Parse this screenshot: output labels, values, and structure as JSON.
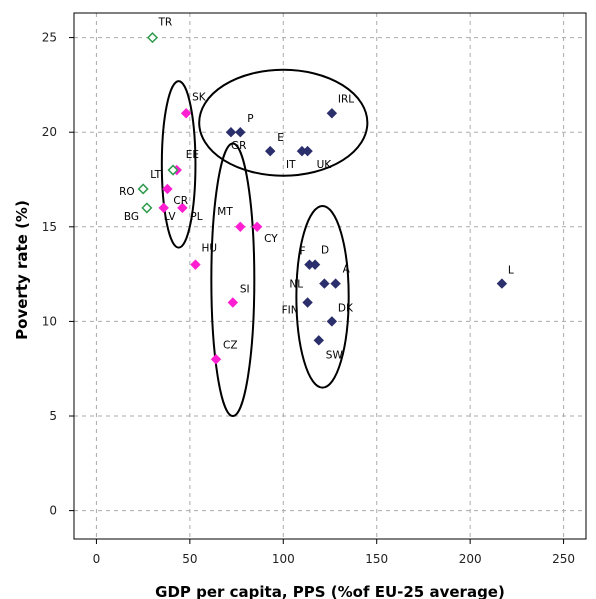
{
  "chart_data": {
    "type": "scatter",
    "title": "",
    "xlabel": "GDP per capita, PPS (%of EU-25 average)",
    "ylabel": "Poverty rate (%)",
    "xlim": [
      -12,
      262
    ],
    "ylim": [
      -1.5,
      26.3
    ],
    "x_ticks": [
      0,
      50,
      100,
      150,
      200,
      250
    ],
    "y_ticks": [
      0,
      5,
      10,
      15,
      20,
      25
    ],
    "grid": "dashed",
    "colors": {
      "old_members": "#2b2f6b",
      "new_members": "#ff1fd1",
      "candidates": "#2e9a4e",
      "grid": "#aaaaaa",
      "frame": "#000000"
    },
    "groups": [
      {
        "marker": "filled-diamond",
        "color_key": "old_members",
        "points": [
          {
            "label": "IRL",
            "x": 126,
            "y": 21
          },
          {
            "label": "P",
            "x": 77,
            "y": 20
          },
          {
            "label": "GR",
            "x": 72,
            "y": 20
          },
          {
            "label": "E",
            "x": 93,
            "y": 19
          },
          {
            "label": "IT",
            "x": 110,
            "y": 19
          },
          {
            "label": "UK",
            "x": 113,
            "y": 19
          },
          {
            "label": "F",
            "x": 114,
            "y": 13
          },
          {
            "label": "D",
            "x": 117,
            "y": 13
          },
          {
            "label": "NL",
            "x": 122,
            "y": 12
          },
          {
            "label": "A",
            "x": 128,
            "y": 12
          },
          {
            "label": "FIN",
            "x": 113,
            "y": 11
          },
          {
            "label": "DK",
            "x": 126,
            "y": 10
          },
          {
            "label": "SW",
            "x": 119,
            "y": 9
          },
          {
            "label": "L",
            "x": 217,
            "y": 12
          }
        ]
      },
      {
        "marker": "filled-diamond",
        "color_key": "new_members",
        "points": [
          {
            "label": "SK",
            "x": 48,
            "y": 21
          },
          {
            "label": "EE",
            "x": 43,
            "y": 18
          },
          {
            "label": "CR",
            "x": 38,
            "y": 17
          },
          {
            "label": "LV",
            "x": 36,
            "y": 16
          },
          {
            "label": "PL",
            "x": 46,
            "y": 16
          },
          {
            "label": "MT",
            "x": 77,
            "y": 15
          },
          {
            "label": "CY",
            "x": 86,
            "y": 15
          },
          {
            "label": "HU",
            "x": 53,
            "y": 13
          },
          {
            "label": "SI",
            "x": 73,
            "y": 11
          },
          {
            "label": "CZ",
            "x": 64,
            "y": 8
          }
        ]
      },
      {
        "marker": "hollow-diamond",
        "color_key": "candidates",
        "points": [
          {
            "label": "TR",
            "x": 30,
            "y": 25
          },
          {
            "label": "RO",
            "x": 25,
            "y": 17
          },
          {
            "label": "LT",
            "x": 41,
            "y": 18
          },
          {
            "label": "BG",
            "x": 27,
            "y": 16
          }
        ]
      }
    ],
    "ellipses": [
      {
        "name": "cluster-ireland-south",
        "cx": 100,
        "cy": 20.5,
        "rx": 45,
        "ry": 2.8
      },
      {
        "name": "cluster-baltic-slovakia",
        "cx": 44,
        "cy": 18.3,
        "rx": 9,
        "ry": 4.4
      },
      {
        "name": "cluster-central-europe",
        "cx": 73,
        "cy": 12.2,
        "rx": 11.5,
        "ry": 7.2
      },
      {
        "name": "cluster-north-west",
        "cx": 121,
        "cy": 11.3,
        "rx": 14,
        "ry": 4.8
      }
    ]
  }
}
